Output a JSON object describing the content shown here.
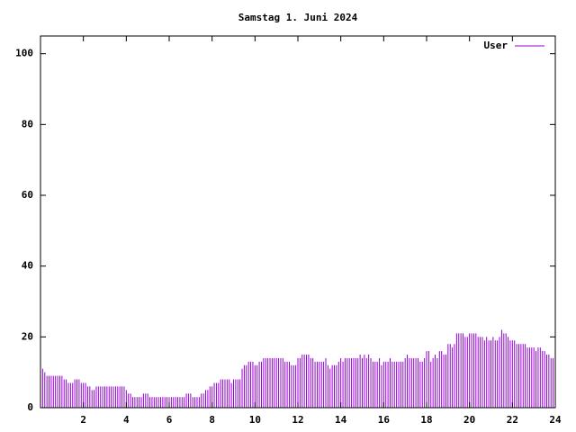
{
  "chart_data": {
    "type": "impulse",
    "title": "Samstag 1. Juni 2024",
    "xlim": [
      0,
      24
    ],
    "xticks": [
      2,
      4,
      6,
      8,
      10,
      12,
      14,
      16,
      18,
      20,
      22,
      24
    ],
    "ylim": [
      0,
      105
    ],
    "yticks": [
      0,
      20,
      40,
      60,
      80,
      100
    ],
    "legend": "top right",
    "series": [
      {
        "name": "User",
        "color": "#9400d3",
        "x": [
          0,
          0.1,
          0.2,
          0.3,
          0.4,
          0.5,
          0.6,
          0.7,
          0.8,
          0.9,
          1,
          1.1,
          1.2,
          1.3,
          1.4,
          1.5,
          1.6,
          1.7,
          1.8,
          1.9,
          2,
          2.1,
          2.2,
          2.3,
          2.4,
          2.5,
          2.6,
          2.7,
          2.8,
          2.9,
          3,
          3.1,
          3.2,
          3.3,
          3.4,
          3.5,
          3.6,
          3.7,
          3.8,
          3.9,
          4,
          4.1,
          4.2,
          4.3,
          4.4,
          4.5,
          4.6,
          4.7,
          4.8,
          4.9,
          5,
          5.1,
          5.2,
          5.3,
          5.4,
          5.5,
          5.6,
          5.7,
          5.8,
          5.9,
          6,
          6.1,
          6.2,
          6.3,
          6.4,
          6.5,
          6.6,
          6.7,
          6.8,
          6.9,
          7,
          7.1,
          7.2,
          7.3,
          7.4,
          7.5,
          7.6,
          7.7,
          7.8,
          7.9,
          8,
          8.1,
          8.2,
          8.3,
          8.4,
          8.5,
          8.6,
          8.7,
          8.8,
          8.9,
          9,
          9.1,
          9.2,
          9.3,
          9.4,
          9.5,
          9.6,
          9.7,
          9.8,
          9.9,
          10,
          10.1,
          10.2,
          10.3,
          10.4,
          10.5,
          10.6,
          10.7,
          10.8,
          10.9,
          11,
          11.1,
          11.2,
          11.3,
          11.4,
          11.5,
          11.6,
          11.7,
          11.8,
          11.9,
          12,
          12.1,
          12.2,
          12.3,
          12.4,
          12.5,
          12.6,
          12.7,
          12.8,
          12.9,
          13,
          13.1,
          13.2,
          13.3,
          13.4,
          13.5,
          13.6,
          13.7,
          13.8,
          13.9,
          14,
          14.1,
          14.2,
          14.3,
          14.4,
          14.5,
          14.6,
          14.7,
          14.8,
          14.9,
          15,
          15.1,
          15.2,
          15.3,
          15.4,
          15.5,
          15.6,
          15.7,
          15.8,
          15.9,
          16,
          16.1,
          16.2,
          16.3,
          16.4,
          16.5,
          16.6,
          16.7,
          16.8,
          16.9,
          17,
          17.1,
          17.2,
          17.3,
          17.4,
          17.5,
          17.6,
          17.7,
          17.8,
          17.9,
          18,
          18.1,
          18.2,
          18.3,
          18.4,
          18.5,
          18.6,
          18.7,
          18.8,
          18.9,
          19,
          19.1,
          19.2,
          19.3,
          19.4,
          19.5,
          19.6,
          19.7,
          19.8,
          19.9,
          20,
          20.1,
          20.2,
          20.3,
          20.4,
          20.5,
          20.6,
          20.7,
          20.8,
          20.9,
          21,
          21.1,
          21.2,
          21.3,
          21.4,
          21.5,
          21.6,
          21.7,
          21.8,
          21.9,
          22,
          22.1,
          22.2,
          22.3,
          22.4,
          22.5,
          22.6,
          22.7,
          22.8,
          22.9,
          23,
          23.1,
          23.2,
          23.3,
          23.4,
          23.5,
          23.6,
          23.7,
          23.8,
          23.9
        ],
        "values": [
          12,
          11,
          10,
          9,
          9,
          9,
          9,
          9,
          9,
          9,
          9,
          8,
          8,
          7,
          7,
          7,
          8,
          8,
          8,
          7,
          7,
          7,
          6,
          6,
          5,
          5,
          6,
          6,
          6,
          6,
          6,
          6,
          6,
          6,
          6,
          6,
          6,
          6,
          6,
          6,
          5,
          4,
          4,
          3,
          3,
          3,
          3,
          3,
          4,
          4,
          4,
          3,
          3,
          3,
          3,
          3,
          3,
          3,
          3,
          3,
          3,
          3,
          3,
          3,
          3,
          3,
          3,
          3,
          4,
          4,
          4,
          3,
          3,
          3,
          3,
          4,
          4,
          5,
          5,
          6,
          6,
          7,
          7,
          7,
          8,
          8,
          8,
          8,
          8,
          7,
          8,
          8,
          8,
          8,
          11,
          12,
          12,
          13,
          13,
          13,
          12,
          12,
          13,
          13,
          14,
          14,
          14,
          14,
          14,
          14,
          14,
          14,
          14,
          14,
          13,
          13,
          13,
          12,
          12,
          12,
          14,
          14,
          15,
          15,
          15,
          15,
          14,
          14,
          13,
          13,
          13,
          13,
          13,
          14,
          12,
          11,
          12,
          12,
          12,
          13,
          14,
          13,
          14,
          14,
          14,
          14,
          14,
          14,
          14,
          15,
          14,
          15,
          14,
          15,
          14,
          13,
          13,
          13,
          14,
          12,
          13,
          13,
          13,
          14,
          13,
          13,
          13,
          13,
          13,
          13,
          14,
          15,
          14,
          14,
          14,
          14,
          14,
          13,
          13,
          14,
          16,
          16,
          13,
          14,
          15,
          14,
          16,
          16,
          15,
          15,
          18,
          18,
          17,
          18,
          21,
          21,
          21,
          21,
          20,
          20,
          21,
          21,
          21,
          21,
          20,
          20,
          20,
          19,
          20,
          19,
          19,
          20,
          19,
          19,
          20,
          22,
          21,
          21,
          20,
          19,
          19,
          19,
          18,
          18,
          18,
          18,
          18,
          17,
          17,
          17,
          17,
          16,
          17,
          17,
          16,
          16,
          15,
          15,
          14,
          14
        ]
      }
    ]
  }
}
